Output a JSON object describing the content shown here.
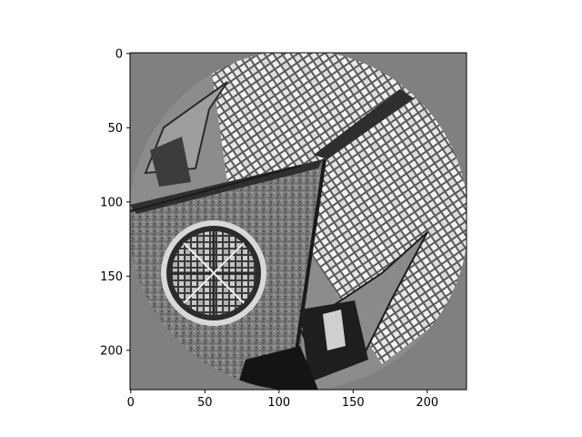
{
  "chart_data": {
    "type": "image",
    "title": "",
    "xlabel": "",
    "ylabel": "",
    "xlim": [
      -0.5,
      226.5
    ],
    "ylim": [
      226.5,
      -0.5
    ],
    "x_ticks": [
      0,
      50,
      100,
      150,
      200
    ],
    "y_ticks": [
      0,
      50,
      100,
      150,
      200
    ],
    "colormap": "gray",
    "image_content": "grayscale emboss-filtered photo of a church facade with a rose window and two spires, masked by a circle on a mid-gray background",
    "background_color": "#808080",
    "grid": false,
    "legend": "none"
  }
}
